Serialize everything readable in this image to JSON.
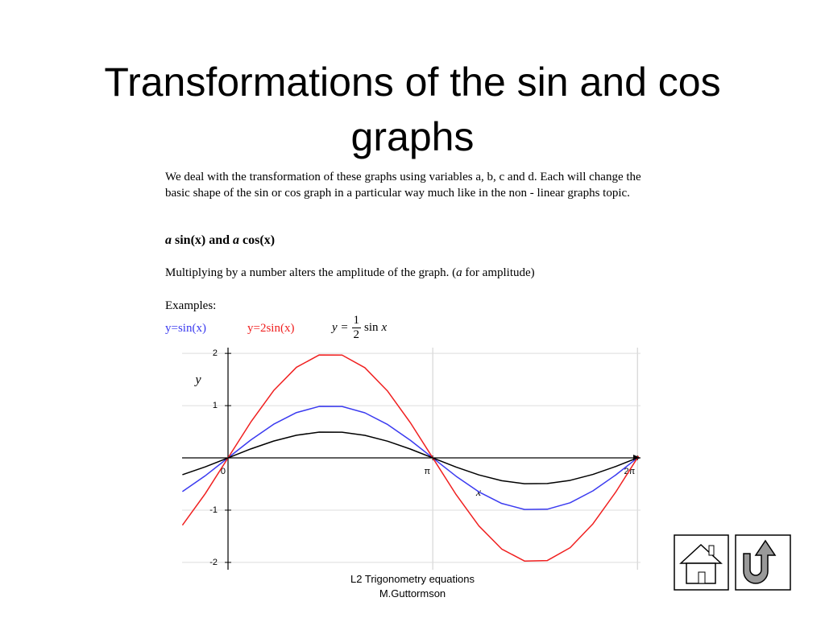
{
  "title": "Transformations of the sin and cos graphs",
  "intro": "We deal with the transformation of these graphs using variables a, b, c and d. Each will change the basic shape of the sin or cos graph in a particular way much like in the non - linear graphs topic.",
  "heading": {
    "parts": [
      "a",
      " sin(x) and ",
      "a",
      " cos(x)"
    ]
  },
  "amplitude_note": {
    "parts": [
      "Multiplying by a number alters the amplitude of the graph. (",
      "a",
      " for amplitude)"
    ]
  },
  "examples_label": "Examples:",
  "formula": {
    "lhs": "y =",
    "numerator": "1",
    "denominator": "2",
    "fn": "sin",
    "var": "x"
  },
  "chart_data": {
    "type": "line",
    "x_label": "x",
    "y_label": "y",
    "x": [
      -0.7,
      -0.35,
      0,
      0.35,
      0.7,
      1.05,
      1.4,
      1.75,
      2.1,
      2.45,
      2.8,
      3.15,
      3.5,
      3.85,
      4.2,
      4.55,
      4.9,
      5.25,
      5.6,
      5.95,
      6.3
    ],
    "series": [
      {
        "name": "y=sin(x)",
        "color": "#3b3bf0",
        "values": [
          -0.644,
          -0.343,
          0,
          0.343,
          0.644,
          0.867,
          0.985,
          0.984,
          0.863,
          0.638,
          0.335,
          -0.008,
          -0.351,
          -0.651,
          -0.872,
          -0.987,
          -0.982,
          -0.859,
          -0.631,
          -0.327,
          0.017
        ]
      },
      {
        "name": "y=2sin(x)",
        "color": "#f02020",
        "values": [
          -1.288,
          -0.686,
          0,
          0.686,
          1.288,
          1.734,
          1.97,
          1.968,
          1.726,
          1.276,
          0.67,
          -0.016,
          -0.702,
          -1.302,
          -1.744,
          -1.974,
          -1.964,
          -1.718,
          -1.262,
          -0.654,
          0.034
        ]
      },
      {
        "color": "#000000",
        "values": [
          -0.322,
          -0.172,
          0,
          0.172,
          0.322,
          0.434,
          0.493,
          0.492,
          0.432,
          0.319,
          0.168,
          -0.004,
          -0.176,
          -0.326,
          -0.436,
          -0.494,
          -0.491,
          -0.43,
          -0.316,
          -0.164,
          0.009
        ]
      }
    ],
    "xlim": [
      -0.705,
      6.33
    ],
    "ylim": [
      -2.14,
      2.11
    ],
    "xticks": [
      0,
      {
        "value": 3.1416,
        "label": "π"
      },
      {
        "value": 6.2832,
        "label": "2π"
      }
    ],
    "yticks": [
      -2,
      -1,
      1,
      2
    ],
    "grid": true
  },
  "footer": [
    "L2 Trigonometry equations",
    "M.Guttormson"
  ]
}
